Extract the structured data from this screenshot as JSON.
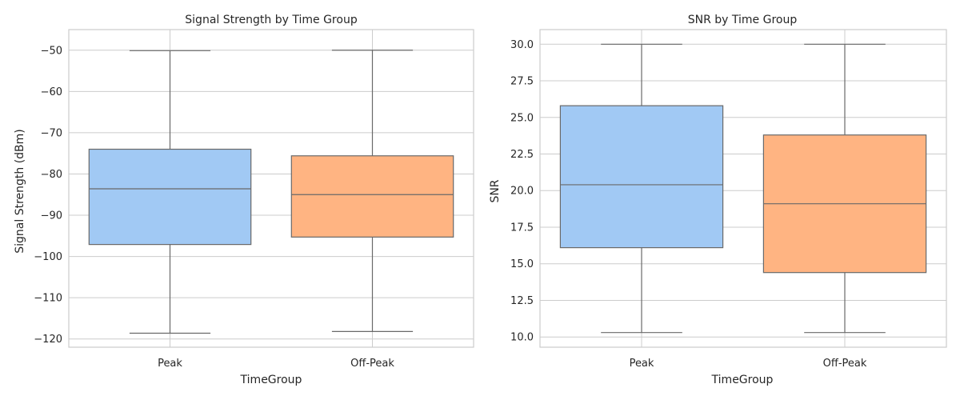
{
  "chart_data": [
    {
      "type": "box",
      "title": "Signal Strength by Time Group",
      "xlabel": "TimeGroup",
      "ylabel": "Signal Strength (dBm)",
      "ylim": [
        -122,
        -45
      ],
      "yticks": [
        -120,
        -110,
        -100,
        -90,
        -80,
        -70,
        -60,
        -50
      ],
      "ytick_labels": [
        "−120",
        "−110",
        "−100",
        "−90",
        "−80",
        "−70",
        "−60",
        "−50"
      ],
      "grid": "horizontal",
      "categories": [
        "Peak",
        "Off-Peak"
      ],
      "boxes": [
        {
          "category": "Peak",
          "min": -118.6,
          "q1": -97.1,
          "median": -83.6,
          "q3": -74.0,
          "max": -50.1,
          "color": "#a1c9f4"
        },
        {
          "category": "Off-Peak",
          "min": -118.2,
          "q1": -95.3,
          "median": -85.0,
          "q3": -75.6,
          "max": -50.0,
          "color": "#ffb482"
        }
      ]
    },
    {
      "type": "box",
      "title": "SNR by Time Group",
      "xlabel": "TimeGroup",
      "ylabel": "SNR",
      "ylim": [
        9.3,
        31.0
      ],
      "yticks": [
        10.0,
        12.5,
        15.0,
        17.5,
        20.0,
        22.5,
        25.0,
        27.5,
        30.0
      ],
      "ytick_labels": [
        "10.0",
        "12.5",
        "15.0",
        "17.5",
        "20.0",
        "22.5",
        "25.0",
        "27.5",
        "30.0"
      ],
      "grid": "horizontal",
      "categories": [
        "Peak",
        "Off-Peak"
      ],
      "boxes": [
        {
          "category": "Peak",
          "min": 10.3,
          "q1": 16.1,
          "median": 20.4,
          "q3": 25.8,
          "max": 30.0,
          "color": "#a1c9f4"
        },
        {
          "category": "Off-Peak",
          "min": 10.3,
          "q1": 14.4,
          "median": 19.1,
          "q3": 23.8,
          "max": 30.0,
          "color": "#ffb482"
        }
      ]
    }
  ],
  "colors": {
    "frame": "#cccccc",
    "grid": "#cccccc",
    "box_edge": "#696969",
    "text": "#262626"
  }
}
